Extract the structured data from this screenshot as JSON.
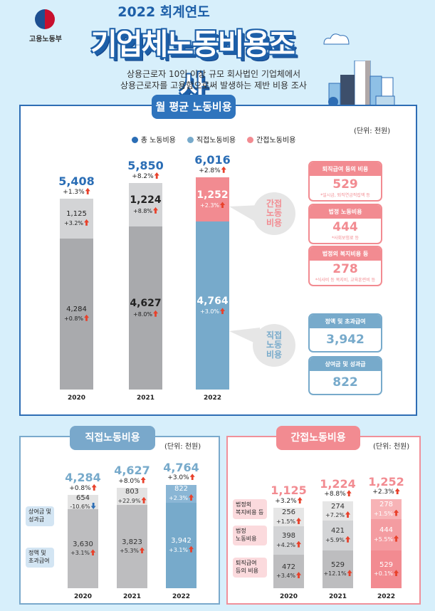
{
  "header": {
    "ministry": "고용노동부",
    "year_title": "2022 회계연도",
    "title": "기업체노동비용조사",
    "desc_line1": "상용근로자 10인 이상 규모 회사법인 기업체에서",
    "desc_line2": "상용근로자를 고용함으로써 발생하는 제반 비용 조사"
  },
  "colors": {
    "total": "#2a6db5",
    "direct": "#77aacb",
    "indirect": "#f28b91",
    "up_arrow": "#e8412b",
    "down_arrow": "#2f6fb5"
  },
  "main": {
    "tab": "월 평균 노동비용",
    "unit": "(단위: 천원)",
    "legend": [
      "총 노동비용",
      "직접노동비용",
      "간접노동비용"
    ],
    "bubble_indirect": "간접\n노동\n비용",
    "bubble_direct": "직접\n노동\n비용",
    "boxes_indirect": [
      {
        "title": "퇴직급여 등의 비용",
        "value": "529",
        "note": "*일시금, 퇴직연금적립액 등"
      },
      {
        "title": "법정 노동비용",
        "value": "444",
        "note": "*사회보험료 등"
      },
      {
        "title": "법정외 복지비용 등",
        "value": "278",
        "note": "*식사비 등 복지비, 교육훈련비 등"
      }
    ],
    "boxes_direct": [
      {
        "title": "정액 및 초과급여",
        "value": "3,942"
      },
      {
        "title": "상여금 및 성과급",
        "value": "822"
      }
    ]
  },
  "direct_panel": {
    "tab": "직접노동비용",
    "unit": "(단위: 천원)",
    "labels": [
      "상여금 및\n성과급",
      "정액 및\n초과급여"
    ]
  },
  "indirect_panel": {
    "tab": "간접노동비용",
    "unit": "(단위: 천원)",
    "labels": [
      "법정외\n복지비용 등",
      "법정\n노동비용",
      "퇴직급여\n등의 비용"
    ]
  },
  "chart_data": [
    {
      "type": "bar",
      "stacked": true,
      "title": "월 평균 노동비용",
      "unit": "천원",
      "categories": [
        "2020",
        "2021",
        "2022"
      ],
      "totals": {
        "name": "총 노동비용",
        "values": [
          5408,
          5850,
          6016
        ],
        "changes": [
          "+1.3%",
          "+8.2%",
          "+2.8%"
        ]
      },
      "series": [
        {
          "name": "직접노동비용",
          "values": [
            4284,
            4627,
            4764
          ],
          "changes": [
            "+0.8%",
            "+8.0%",
            "+3.0%"
          ],
          "directions": [
            "up",
            "up",
            "up"
          ]
        },
        {
          "name": "간접노동비용",
          "values": [
            1125,
            1224,
            1252
          ],
          "changes": [
            "+3.2%",
            "+8.8%",
            "+2.3%"
          ],
          "directions": [
            "up",
            "up",
            "up"
          ]
        }
      ]
    },
    {
      "type": "bar",
      "stacked": true,
      "title": "직접노동비용",
      "unit": "천원",
      "categories": [
        "2020",
        "2021",
        "2022"
      ],
      "totals": {
        "values": [
          4284,
          4627,
          4764
        ],
        "changes": [
          "+0.8%",
          "+8.0%",
          "+3.0%"
        ]
      },
      "series": [
        {
          "name": "정액 및 초과급여",
          "values": [
            3630,
            3823,
            3942
          ],
          "changes": [
            "+3.1%",
            "+5.3%",
            "+3.1%"
          ],
          "directions": [
            "up",
            "up",
            "up"
          ]
        },
        {
          "name": "상여금 및 성과급",
          "values": [
            654,
            803,
            822
          ],
          "changes": [
            "-10.6%",
            "+22.9%",
            "+2.3%"
          ],
          "directions": [
            "down",
            "up",
            "up"
          ]
        }
      ]
    },
    {
      "type": "bar",
      "stacked": true,
      "title": "간접노동비용",
      "unit": "천원",
      "categories": [
        "2020",
        "2021",
        "2022"
      ],
      "totals": {
        "values": [
          1125,
          1224,
          1252
        ],
        "changes": [
          "+3.2%",
          "+8.8%",
          "+2.3%"
        ]
      },
      "series": [
        {
          "name": "퇴직급여 등의 비용",
          "values": [
            472,
            529,
            529
          ],
          "changes": [
            "+3.4%",
            "+12.1%",
            "+0.1%"
          ],
          "directions": [
            "up",
            "up",
            "up"
          ]
        },
        {
          "name": "법정 노동비용",
          "values": [
            398,
            421,
            444
          ],
          "changes": [
            "+4.2%",
            "+5.9%",
            "+5.5%"
          ],
          "directions": [
            "up",
            "up",
            "up"
          ]
        },
        {
          "name": "법정외 복지비용 등",
          "values": [
            256,
            274,
            278
          ],
          "changes": [
            "+1.5%",
            "+7.2%",
            "+1.5%"
          ],
          "directions": [
            "up",
            "up",
            "up"
          ]
        }
      ]
    }
  ]
}
